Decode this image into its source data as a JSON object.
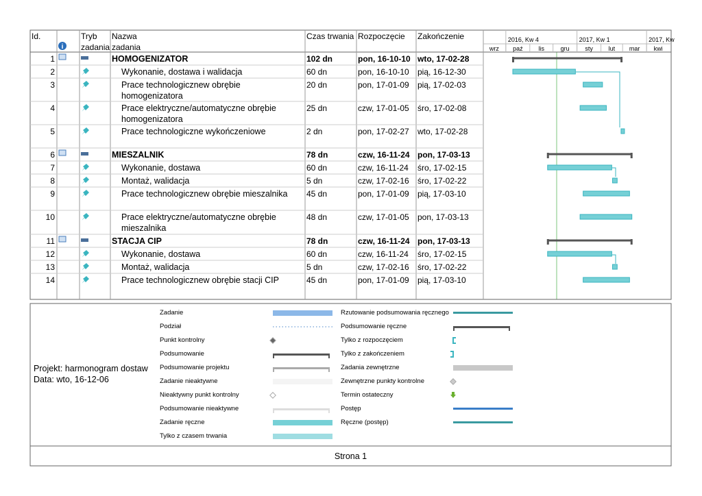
{
  "header": {
    "columns": [
      "Id.",
      "Tryb zadania",
      "Nazwa zadania",
      "Czas trwania",
      "Rozpoczęcie",
      "Zakończenie"
    ],
    "timescale": {
      "quarters": [
        "2016, Kw 4",
        "2017, Kw 1",
        "2017, Kw"
      ],
      "months": [
        "wrz",
        "paź",
        "lis",
        "gru",
        "sty",
        "lut",
        "mar",
        "kwi"
      ]
    }
  },
  "tasks": [
    {
      "id": 1,
      "name": "HOMOGENIZATOR",
      "duration": "102 dn",
      "start": "pon, 16-10-10",
      "finish": "wto, 17-02-28",
      "summary": true
    },
    {
      "id": 2,
      "name": "Wykonanie, dostawa i walidacja",
      "duration": "60 dn",
      "start": "pon, 16-10-10",
      "finish": "pią, 16-12-30",
      "summary": false
    },
    {
      "id": 3,
      "name": "Prace technologicznew obrębie homogenizatora",
      "duration": "20 dn",
      "start": "pon, 17-01-09",
      "finish": "pią, 17-02-03",
      "summary": false
    },
    {
      "id": 4,
      "name": "Prace elektryczne/automatyczne obrębie homogenizatora",
      "duration": "25 dn",
      "start": "czw, 17-01-05",
      "finish": "śro, 17-02-08",
      "summary": false
    },
    {
      "id": 5,
      "name": "Prace technologiczne wykończeniowe",
      "duration": "2 dn",
      "start": "pon, 17-02-27",
      "finish": "wto, 17-02-28",
      "summary": false
    },
    {
      "id": 6,
      "name": "MIESZALNIK",
      "duration": "78 dn",
      "start": "czw, 16-11-24",
      "finish": "pon, 17-03-13",
      "summary": true
    },
    {
      "id": 7,
      "name": "Wykonanie, dostawa",
      "duration": "60 dn",
      "start": "czw, 16-11-24",
      "finish": "śro, 17-02-15",
      "summary": false
    },
    {
      "id": 8,
      "name": "Montaż, walidacja",
      "duration": "5 dn",
      "start": "czw, 17-02-16",
      "finish": "śro, 17-02-22",
      "summary": false
    },
    {
      "id": 9,
      "name": "Prace technologicznew obrębie mieszalnika",
      "duration": "45 dn",
      "start": "pon, 17-01-09",
      "finish": "pią, 17-03-10",
      "summary": false
    },
    {
      "id": 10,
      "name": "Prace elektryczne/automatyczne obrębie mieszalnika",
      "duration": "48 dn",
      "start": "czw, 17-01-05",
      "finish": "pon, 17-03-13",
      "summary": false
    },
    {
      "id": 11,
      "name": "STACJA CIP",
      "duration": "78 dn",
      "start": "czw, 16-11-24",
      "finish": "pon, 17-03-13",
      "summary": true
    },
    {
      "id": 12,
      "name": "Wykonanie, dostawa",
      "duration": "60 dn",
      "start": "czw, 16-11-24",
      "finish": "śro, 17-02-15",
      "summary": false
    },
    {
      "id": 13,
      "name": "Montaż, walidacja",
      "duration": "5 dn",
      "start": "czw, 17-02-16",
      "finish": "śro, 17-02-22",
      "summary": false
    },
    {
      "id": 14,
      "name": "Prace technologicznew obrębie stacji CIP",
      "duration": "45 dn",
      "start": "pon, 17-01-09",
      "finish": "pią, 17-03-10",
      "summary": false
    }
  ],
  "legend": {
    "left": [
      "Zadanie",
      "Podział",
      "Punkt kontrolny",
      "Podsumowanie",
      "Podsumowanie projektu",
      "Zadanie nieaktywne",
      "Nieaktywny punkt kontrolny",
      "Podsumowanie nieaktywne",
      "Zadanie ręczne",
      "Tylko z czasem trwania"
    ],
    "right": [
      "Rzutowanie podsumowania ręcznego",
      "Podsumowanie ręczne",
      "Tylko z rozpoczęciem",
      "Tylko z zakończeniem",
      "Zadania zewnętrzne",
      "Zewnętrzne punkty kontrolne",
      "Termin ostateczny",
      "Postęp",
      "Ręczne (postęp)"
    ]
  },
  "project": {
    "name": "Projekt: harmonogram dostaw",
    "date": "Data: wto, 16-12-06"
  },
  "footer": "Strona 1"
}
